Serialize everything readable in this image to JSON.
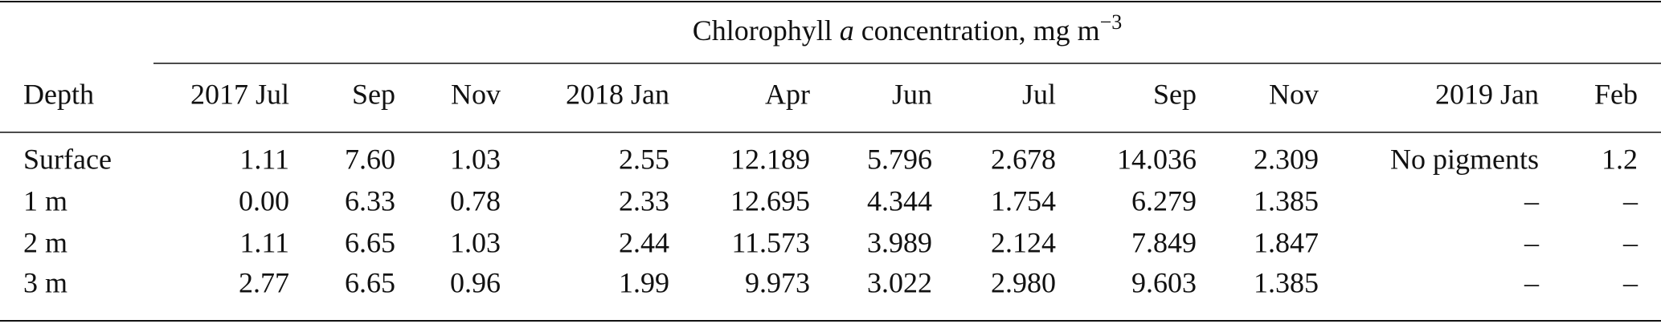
{
  "table": {
    "title": {
      "prefix": "Chlorophyll ",
      "italic": "a",
      "suffix": " concentration, mg m",
      "sup": "−3"
    },
    "columns": [
      "Depth",
      "2017 Jul",
      "Sep",
      "Nov",
      "2018 Jan",
      "Apr",
      "Jun",
      "Jul",
      "Sep",
      "Nov",
      "2019 Jan",
      "Feb"
    ],
    "rows": [
      [
        "Surface",
        "1.11",
        "7.60",
        "1.03",
        "2.55",
        "12.189",
        "5.796",
        "2.678",
        "14.036",
        "2.309",
        "No pigments",
        "1.2"
      ],
      [
        "1 m",
        "0.00",
        "6.33",
        "0.78",
        "2.33",
        "12.695",
        "4.344",
        "1.754",
        "6.279",
        "1.385",
        "–",
        "–"
      ],
      [
        "2 m",
        "1.11",
        "6.65",
        "1.03",
        "2.44",
        "11.573",
        "3.989",
        "2.124",
        "7.849",
        "1.847",
        "–",
        "–"
      ],
      [
        "3 m",
        "2.77",
        "6.65",
        "0.96",
        "1.99",
        "9.973",
        "3.022",
        "2.980",
        "9.603",
        "1.385",
        "–",
        "–"
      ]
    ]
  }
}
